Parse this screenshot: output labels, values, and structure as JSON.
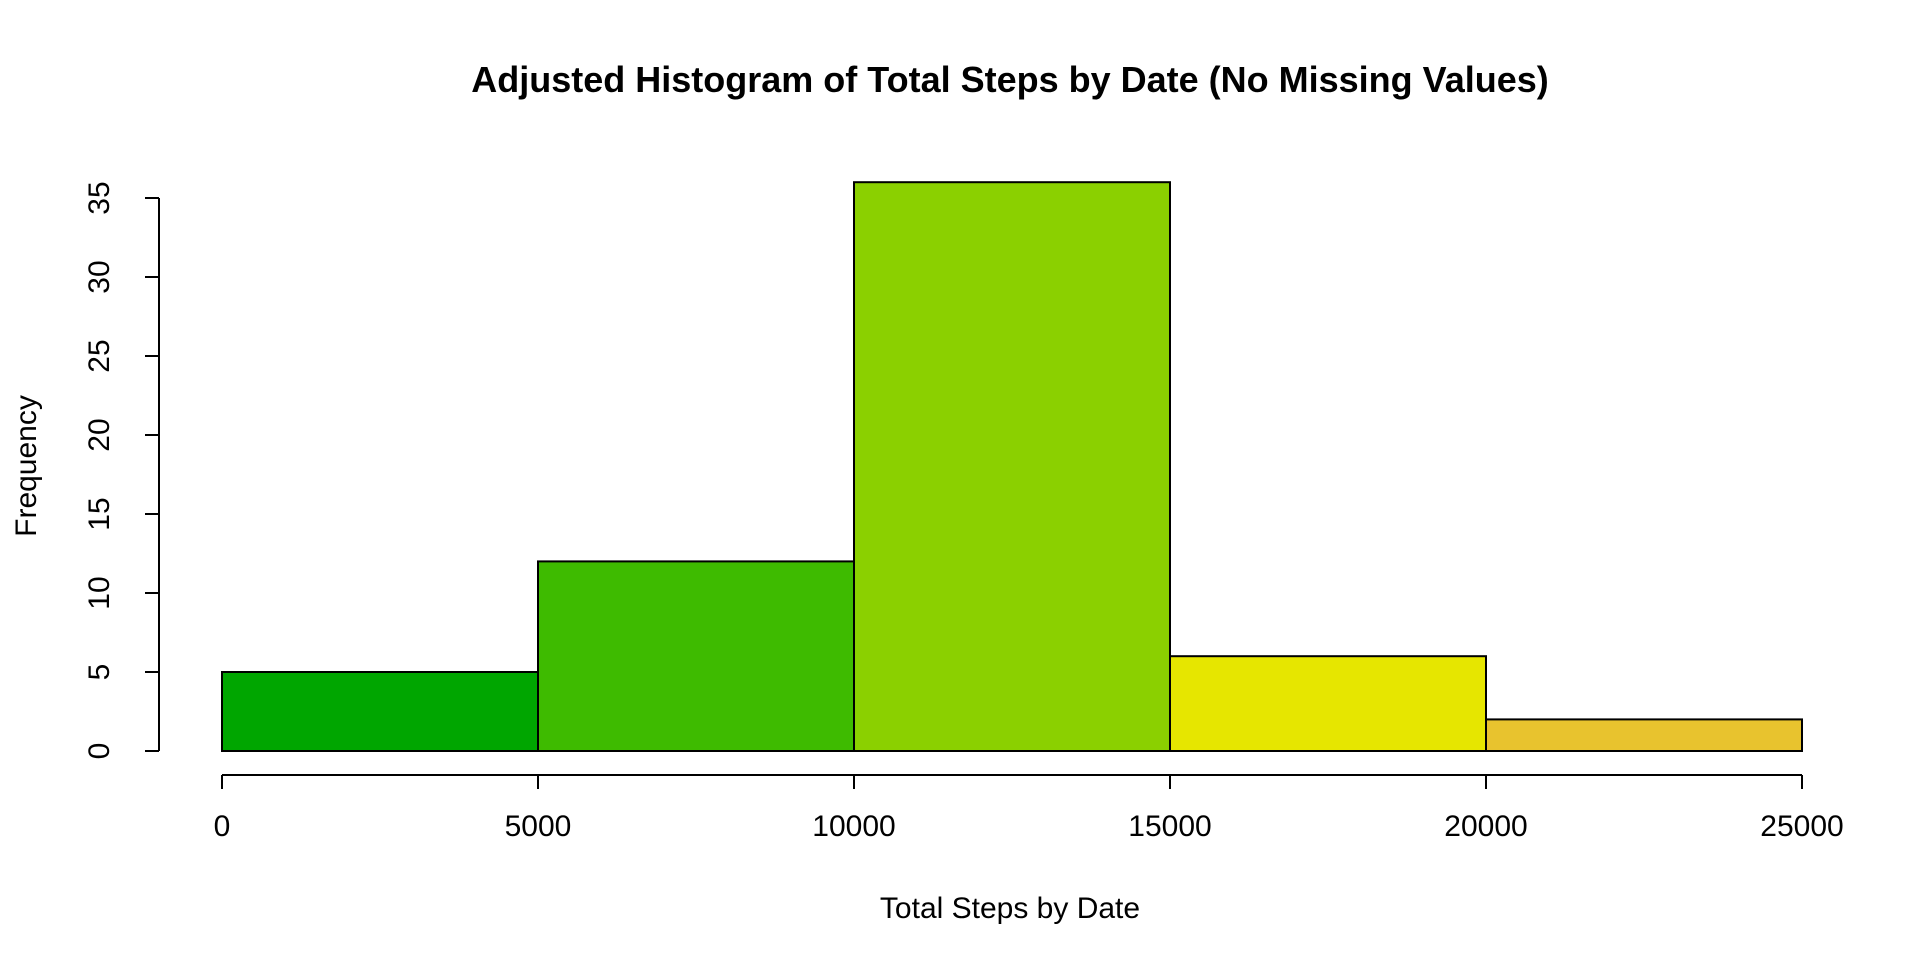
{
  "chart_data": {
    "type": "bar",
    "subtype": "histogram",
    "title": "Adjusted Histogram of Total Steps by Date (No Missing Values)",
    "xlabel": "Total Steps by Date",
    "ylabel": "Frequency",
    "bins": [
      {
        "from": 0,
        "to": 5000,
        "count": 5,
        "color": "#00A600"
      },
      {
        "from": 5000,
        "to": 10000,
        "count": 12,
        "color": "#3EBB00"
      },
      {
        "from": 10000,
        "to": 15000,
        "count": 36,
        "color": "#8BD000"
      },
      {
        "from": 15000,
        "to": 20000,
        "count": 6,
        "color": "#E6E600"
      },
      {
        "from": 20000,
        "to": 25000,
        "count": 2,
        "color": "#E8C32E"
      }
    ],
    "x_ticks": [
      0,
      5000,
      10000,
      15000,
      20000,
      25000
    ],
    "x_tick_labels": [
      "0",
      "5000",
      "10000",
      "15000",
      "20000",
      "25000"
    ],
    "y_ticks": [
      0,
      5,
      10,
      15,
      20,
      25,
      30,
      35
    ],
    "y_tick_labels": [
      "0",
      "5",
      "10",
      "15",
      "20",
      "25",
      "30",
      "35"
    ],
    "xlim": [
      0,
      25000
    ],
    "ylim": [
      0,
      35
    ],
    "grid": false,
    "legend": "none"
  }
}
